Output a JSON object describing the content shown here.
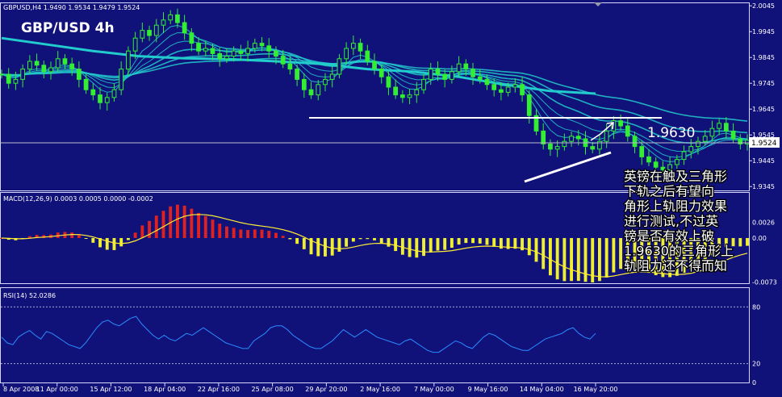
{
  "header": {
    "info": "GBPUSD,H4  1.9490 1.9534 1.9479 1.9524",
    "big_title": "GBP/USD 4h"
  },
  "colors": {
    "background": "#11117a",
    "foreground": "#ffffff",
    "candle": "#33ee33",
    "ma_cyan": "#22cccc",
    "macd_pos": "#dd2222",
    "macd_neg": "#eeee33",
    "macd_signal": "#ffee33",
    "rsi_line": "#2a8cff",
    "trendline": "#ffffff"
  },
  "chart_data": [
    {
      "type": "candlestick",
      "panel": "price",
      "symbol": "GBPUSD",
      "timeframe": "H4",
      "title": "GBP/USD 4h",
      "ylim": [
        1.933,
        2.0055
      ],
      "y_ticks": [
        "2.0045",
        "1.9945",
        "1.9845",
        "1.9745",
        "1.9645",
        "1.9545",
        "1.9445",
        "1.9345"
      ],
      "x_ticks": [
        "8 Apr 2008",
        "11 Apr 00:00",
        "15 Apr 12:00",
        "18 Apr 04:00",
        "22 Apr 16:00",
        "25 Apr 08:00",
        "29 Apr 20:00",
        "2 May 16:00",
        "7 May 00:00",
        "9 May 16:00",
        "14 May 04:00",
        "16 May 20:00"
      ],
      "current_price": 1.9524,
      "current_price_label": "1.9524",
      "resistance": {
        "level": 1.963,
        "label": "1.9630"
      },
      "closes": [
        1.978,
        1.9745,
        1.976,
        1.98,
        1.983,
        1.9815,
        1.979,
        1.9805,
        1.984,
        1.982,
        1.98,
        1.976,
        1.972,
        1.97,
        1.967,
        1.969,
        1.972,
        1.98,
        1.987,
        1.992,
        1.995,
        1.993,
        1.997,
        1.999,
        2.001,
        1.998,
        1.994,
        1.99,
        1.987,
        1.988,
        1.986,
        1.984,
        1.985,
        1.987,
        1.986,
        1.988,
        1.99,
        1.989,
        1.987,
        1.985,
        1.982,
        1.98,
        1.976,
        1.972,
        1.97,
        1.974,
        1.976,
        1.978,
        1.984,
        1.988,
        1.99,
        1.987,
        1.983,
        1.98,
        1.977,
        1.973,
        1.97,
        1.969,
        1.97,
        1.972,
        1.976,
        1.98,
        1.978,
        1.976,
        1.979,
        1.982,
        1.98,
        1.977,
        1.976,
        1.974,
        1.972,
        1.971,
        1.973,
        1.974,
        1.97,
        1.962,
        1.956,
        1.951,
        1.949,
        1.95,
        1.952,
        1.954,
        1.953,
        1.95,
        1.949,
        1.952,
        1.956,
        1.96,
        1.958,
        1.954,
        1.95,
        1.946,
        1.944,
        1.942,
        1.941,
        1.943,
        1.945,
        1.948,
        1.95,
        1.952,
        1.954,
        1.957,
        1.959,
        1.956,
        1.953,
        1.951,
        1.9524
      ],
      "ma_ribbon_periods": [
        5,
        8,
        13,
        21,
        34,
        55
      ],
      "ma_long_period": 200,
      "ma_long_values": [
        1.992,
        1.9895,
        1.987,
        1.985,
        1.9842,
        1.9838,
        1.983,
        1.982,
        1.98,
        1.979,
        1.977,
        1.974,
        1.9715,
        1.9705
      ]
    },
    {
      "type": "bar",
      "panel": "macd",
      "label": "MACD(12,26,9) 0.0003 0.0005 0.0000 -0.0002",
      "ylim": [
        -0.0075,
        0.0075
      ],
      "y_ticks": [
        "0.0026",
        "0.00",
        "-0.0073"
      ],
      "series": [
        {
          "name": "MACD",
          "type": "bar",
          "values_from": "closes"
        },
        {
          "name": "Signal",
          "type": "line",
          "values_from": "MACD"
        }
      ]
    },
    {
      "type": "line",
      "panel": "rsi",
      "label": "RSI(14) 52.0286",
      "ylim": [
        0,
        100
      ],
      "y_ticks": [
        "80",
        "20",
        "0"
      ],
      "levels": [
        80,
        20
      ],
      "values": [
        48,
        42,
        40,
        48,
        52,
        55,
        50,
        46,
        54,
        52,
        48,
        44,
        40,
        38,
        36,
        42,
        50,
        58,
        64,
        66,
        62,
        60,
        64,
        68,
        70,
        62,
        56,
        50,
        46,
        50,
        46,
        44,
        48,
        52,
        50,
        54,
        58,
        54,
        50,
        46,
        42,
        40,
        38,
        36,
        36,
        44,
        48,
        52,
        58,
        60,
        60,
        56,
        50,
        46,
        42,
        38,
        36,
        36,
        40,
        44,
        50,
        56,
        52,
        48,
        52,
        56,
        52,
        48,
        46,
        44,
        42,
        40,
        44,
        46,
        42,
        38,
        34,
        32,
        32,
        36,
        40,
        44,
        42,
        38,
        36,
        42,
        48,
        52,
        50,
        46,
        42,
        38,
        36,
        34,
        34,
        38,
        42,
        46,
        48,
        50,
        52,
        56,
        58,
        52,
        48,
        46,
        52
      ]
    }
  ],
  "annotation": {
    "lines": [
      "英镑在触及三角形",
      "下轨之后有望向",
      "角形上轨阻力效果",
      "进行测试,不过英",
      "镑是否有效上破",
      "1.9630的三角形上",
      "轨阻力还不得而知"
    ]
  }
}
